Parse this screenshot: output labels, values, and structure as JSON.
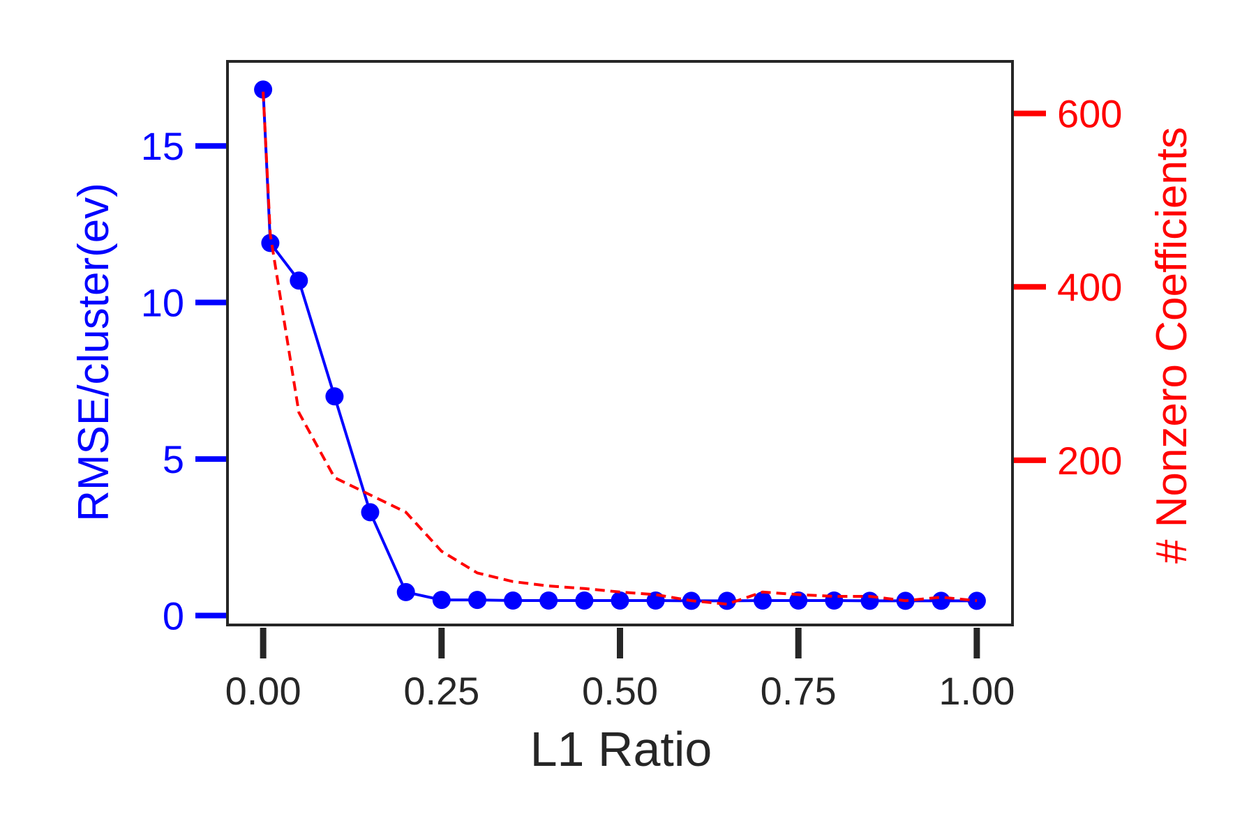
{
  "chart_data": {
    "type": "line",
    "title": "",
    "xlabel": "L1 Ratio",
    "ylabel_left": "RMSE/cluster(ev)",
    "ylabel_right": "# Nonzero Coefficients",
    "xlim": [
      -0.05,
      1.05
    ],
    "ylim_left": [
      -0.3,
      17.7
    ],
    "ylim_right": [
      10,
      660
    ],
    "x_ticks": [
      0.0,
      0.25,
      0.5,
      0.75,
      1.0
    ],
    "x_tick_labels": [
      "0.00",
      "0.25",
      "0.50",
      "0.75",
      "1.00"
    ],
    "y_left_ticks": [
      0,
      5,
      10,
      15
    ],
    "y_left_tick_labels": [
      "0",
      "5",
      "10",
      "15"
    ],
    "y_right_ticks": [
      200,
      400,
      600
    ],
    "y_right_tick_labels": [
      "200",
      "400",
      "600"
    ],
    "grid": false,
    "colors": {
      "left_axis": "#0000ff",
      "right_axis": "#ff0000",
      "frame": "#262626",
      "xaxis": "#262626"
    },
    "series": [
      {
        "axis": "left",
        "style": "solid-line-markers",
        "color": "#0000ff",
        "x": [
          0.0,
          0.01,
          0.05,
          0.1,
          0.15,
          0.2,
          0.25,
          0.3,
          0.35,
          0.4,
          0.45,
          0.5,
          0.55,
          0.6,
          0.65,
          0.7,
          0.75,
          0.8,
          0.85,
          0.9,
          0.95,
          1.0
        ],
        "values": [
          16.8,
          11.9,
          10.7,
          7.0,
          3.3,
          0.75,
          0.5,
          0.5,
          0.48,
          0.48,
          0.48,
          0.48,
          0.48,
          0.47,
          0.47,
          0.48,
          0.48,
          0.48,
          0.47,
          0.47,
          0.47,
          0.47
        ]
      },
      {
        "axis": "right",
        "style": "dashed-line",
        "color": "#ff0000",
        "x": [
          0.0,
          0.01,
          0.05,
          0.1,
          0.15,
          0.2,
          0.25,
          0.3,
          0.35,
          0.4,
          0.45,
          0.5,
          0.55,
          0.6,
          0.65,
          0.7,
          0.75,
          0.8,
          0.85,
          0.9,
          0.95,
          1.0
        ],
        "values": [
          625,
          460,
          255,
          180,
          160,
          140,
          95,
          70,
          60,
          55,
          52,
          48,
          45,
          38,
          34,
          48,
          45,
          43,
          43,
          38,
          42,
          38
        ]
      }
    ]
  }
}
